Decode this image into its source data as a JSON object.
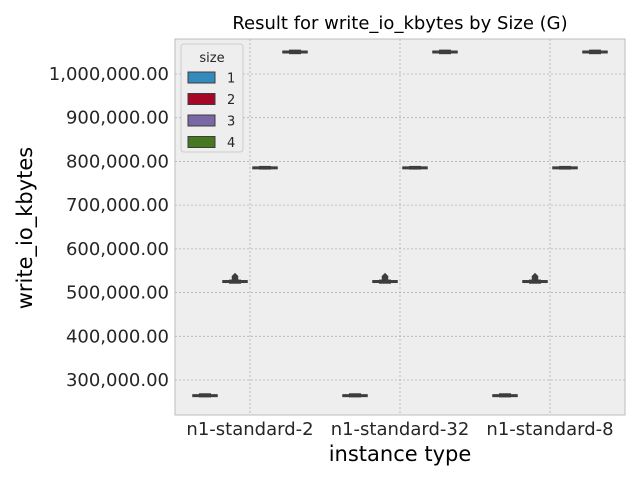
{
  "chart_data": {
    "type": "box",
    "title": "Result for write_io_kbytes by Size (G)",
    "xlabel": "instance type",
    "ylabel": "write_io_kbytes",
    "categories": [
      "n1-standard-2",
      "n1-standard-32",
      "n1-standard-8"
    ],
    "ylim": [
      220000,
      1080000
    ],
    "yticks": [
      300000,
      400000,
      500000,
      600000,
      700000,
      800000,
      900000,
      1000000
    ],
    "ytick_labels": [
      "300,000.00",
      "400,000.00",
      "500,000.00",
      "600,000.00",
      "700,000.00",
      "800,000.00",
      "900,000.00",
      "1,000,000.00"
    ],
    "grid": true,
    "legend": {
      "title": "size",
      "placement": "top-left"
    },
    "series": [
      {
        "name": "1",
        "color": "#348ABD",
        "boxes": [
          {
            "min": 262000,
            "q1": 263000,
            "median": 264000,
            "q3": 266000,
            "max": 268000,
            "outliers": []
          },
          {
            "min": 262000,
            "q1": 263000,
            "median": 264000,
            "q3": 266000,
            "max": 268000,
            "outliers": []
          },
          {
            "min": 262000,
            "q1": 263000,
            "median": 264000,
            "q3": 266000,
            "max": 268000,
            "outliers": []
          }
        ]
      },
      {
        "name": "2",
        "color": "#A60628",
        "boxes": [
          {
            "min": 522000,
            "q1": 524000,
            "median": 525000,
            "q3": 527000,
            "max": 528000,
            "outliers": [
              531000,
              534000,
              537000
            ]
          },
          {
            "min": 522000,
            "q1": 524000,
            "median": 525000,
            "q3": 527000,
            "max": 528000,
            "outliers": [
              531000,
              534000,
              537000
            ]
          },
          {
            "min": 522000,
            "q1": 524000,
            "median": 525000,
            "q3": 527000,
            "max": 528000,
            "outliers": [
              531000,
              534000,
              537000
            ]
          }
        ]
      },
      {
        "name": "3",
        "color": "#7A68A6",
        "boxes": [
          {
            "min": 783000,
            "q1": 784000,
            "median": 785000,
            "q3": 787000,
            "max": 788000,
            "outliers": []
          },
          {
            "min": 783000,
            "q1": 784000,
            "median": 785000,
            "q3": 787000,
            "max": 788000,
            "outliers": []
          },
          {
            "min": 783000,
            "q1": 784000,
            "median": 785000,
            "q3": 787000,
            "max": 788000,
            "outliers": []
          }
        ]
      },
      {
        "name": "4",
        "color": "#467821",
        "boxes": [
          {
            "min": 1047000,
            "q1": 1049000,
            "median": 1050000,
            "q3": 1052000,
            "max": 1054000,
            "outliers": []
          },
          {
            "min": 1047000,
            "q1": 1049000,
            "median": 1050000,
            "q3": 1052000,
            "max": 1054000,
            "outliers": []
          },
          {
            "min": 1047000,
            "q1": 1049000,
            "median": 1050000,
            "q3": 1052000,
            "max": 1054000,
            "outliers": []
          }
        ]
      }
    ]
  }
}
